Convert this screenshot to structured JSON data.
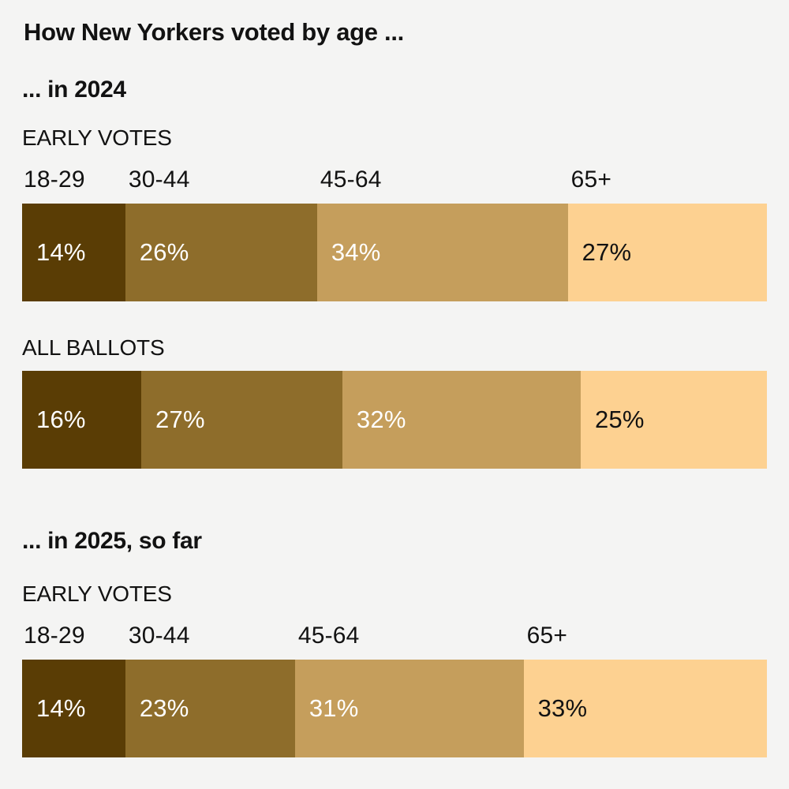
{
  "page": {
    "background_color": "#f4f4f3",
    "text_color": "#121212"
  },
  "chart_data": {
    "type": "bar",
    "variant": "horizontal-stacked-percentage",
    "title": "How New Yorkers voted by age ...",
    "unit": "%",
    "legend_position": "labels-above-first-bar-of-each-section",
    "grid": false,
    "categories": [
      "18-29",
      "30-44",
      "45-64",
      "65+"
    ],
    "segment_colors": [
      "#5a3d05",
      "#8e6d2b",
      "#c59e5c",
      "#fdd191"
    ],
    "value_label_colors": [
      "#ffffff",
      "#ffffff",
      "#ffffff",
      "#121212"
    ],
    "sections": [
      {
        "heading": "... in 2024",
        "bars": [
          {
            "label": "EARLY VOTES",
            "show_category_labels": true,
            "values": [
              14,
              26,
              34,
              27
            ]
          },
          {
            "label": "ALL BALLOTS",
            "show_category_labels": false,
            "values": [
              16,
              27,
              32,
              25
            ]
          }
        ]
      },
      {
        "heading": "... in 2025, so far",
        "bars": [
          {
            "label": "EARLY VOTES",
            "show_category_labels": true,
            "values": [
              14,
              23,
              31,
              33
            ]
          }
        ]
      }
    ]
  }
}
